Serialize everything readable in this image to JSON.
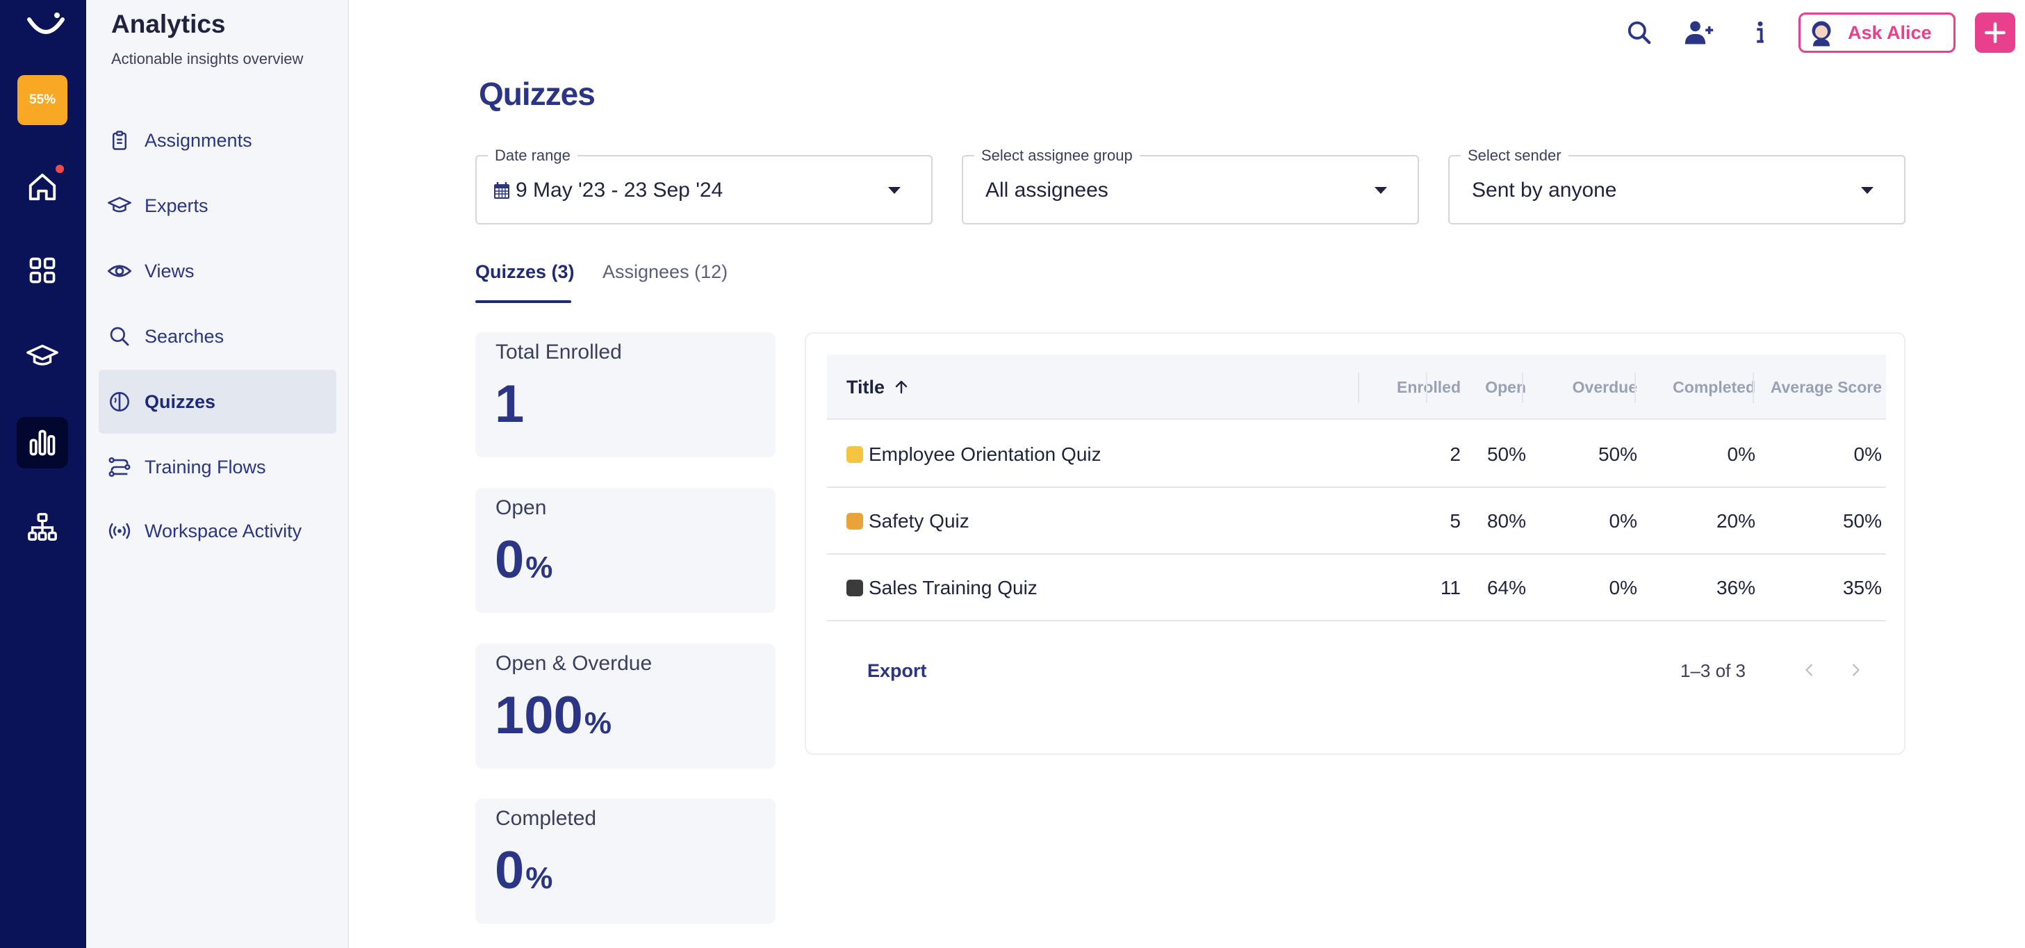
{
  "rail": {
    "progress_label": "55%",
    "icons": [
      "logo-icon",
      "home-icon",
      "grid-icon",
      "graduation-cap-icon",
      "bar-chart-icon",
      "org-chart-icon"
    ]
  },
  "sidebar": {
    "title": "Analytics",
    "subtitle": "Actionable insights overview",
    "items": [
      {
        "label": "Assignments",
        "icon": "clipboard-icon"
      },
      {
        "label": "Experts",
        "icon": "graduation-cap-icon"
      },
      {
        "label": "Views",
        "icon": "eye-icon"
      },
      {
        "label": "Searches",
        "icon": "search-icon"
      },
      {
        "label": "Quizzes",
        "icon": "brain-icon",
        "active": true
      },
      {
        "label": "Training Flows",
        "icon": "flow-icon"
      },
      {
        "label": "Workspace Activity",
        "icon": "broadcast-icon"
      }
    ]
  },
  "topbar": {
    "ask_label": "Ask Alice"
  },
  "page": {
    "title": "Quizzes"
  },
  "filters": {
    "date_range": {
      "label": "Date range",
      "value": "9 May '23 - 23 Sep '24"
    },
    "assignee_group": {
      "label": "Select assignee group",
      "value": "All assignees"
    },
    "sender": {
      "label": "Select sender",
      "value": "Sent by anyone"
    }
  },
  "tabs": [
    {
      "label": "Quizzes (3)",
      "active": true
    },
    {
      "label": "Assignees (12)",
      "active": false
    }
  ],
  "stats": [
    {
      "label": "Total Enrolled",
      "value": "1",
      "unit": ""
    },
    {
      "label": "Open",
      "value": "0",
      "unit": "%"
    },
    {
      "label": "Open & Overdue",
      "value": "100",
      "unit": "%"
    },
    {
      "label": "Completed",
      "value": "0",
      "unit": "%"
    }
  ],
  "table": {
    "columns": [
      "Title",
      "Enrolled",
      "Open",
      "Overdue",
      "Completed",
      "Average Score"
    ],
    "rows": [
      {
        "emoji_color": "#f4c542",
        "title": "Employee Orientation Quiz",
        "enrolled": "2",
        "open": "50%",
        "overdue": "50%",
        "completed": "0%",
        "avg": "0%"
      },
      {
        "emoji_color": "#e8a33a",
        "title": "Safety Quiz",
        "enrolled": "5",
        "open": "80%",
        "overdue": "0%",
        "completed": "20%",
        "avg": "50%"
      },
      {
        "emoji_color": "#3b3b3b",
        "title": "Sales Training Quiz",
        "enrolled": "11",
        "open": "64%",
        "overdue": "0%",
        "completed": "36%",
        "avg": "35%"
      }
    ],
    "export_label": "Export",
    "pagination": "1–3 of 3"
  },
  "colors": {
    "rail": "#0b1358",
    "accent": "#2a3585",
    "pink": "#e8408c",
    "progress": "#f9a826"
  }
}
